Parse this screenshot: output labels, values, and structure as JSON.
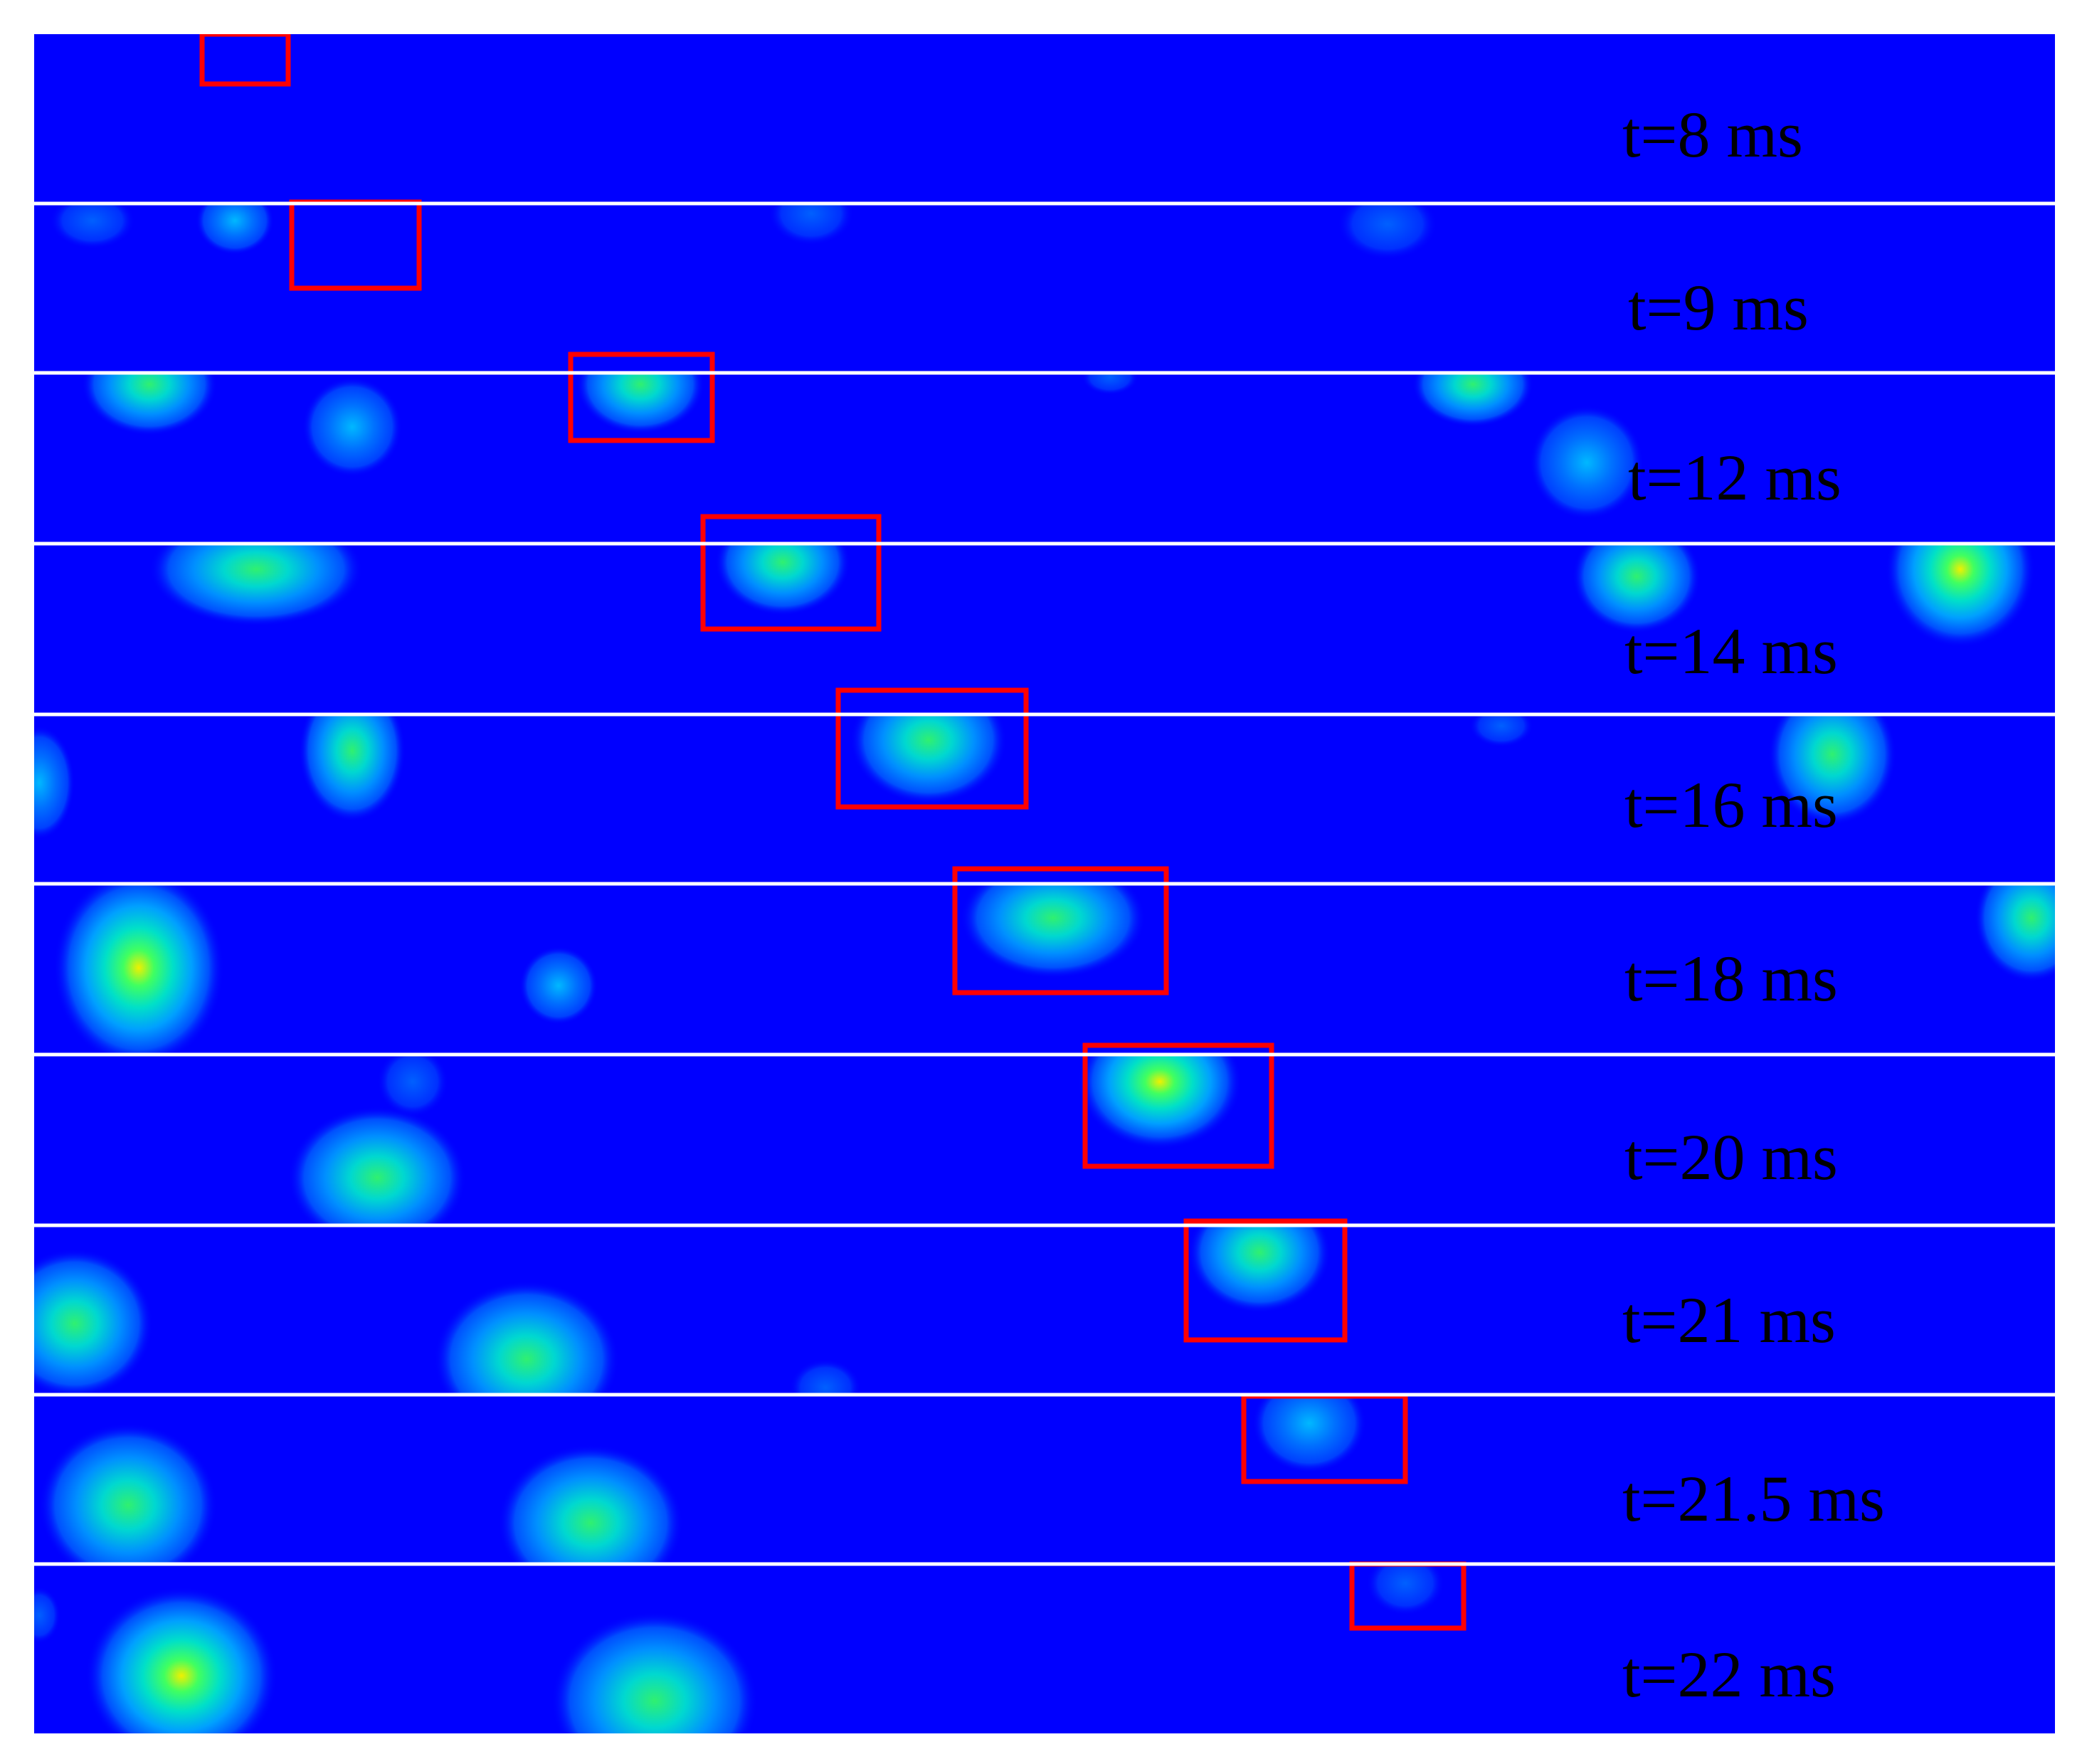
{
  "colors": {
    "background": "#0000ff",
    "separator": "#ffffff",
    "highlight_box": "#ff0000",
    "label_text": "#000000"
  },
  "frames": [
    {
      "time_label": "t=8 ms"
    },
    {
      "time_label": "t=9 ms"
    },
    {
      "time_label": "t=12 ms"
    },
    {
      "time_label": "t=14 ms"
    },
    {
      "time_label": "t=16 ms"
    },
    {
      "time_label": "t=18 ms"
    },
    {
      "time_label": "t=20 ms"
    },
    {
      "time_label": "t=21 ms"
    },
    {
      "time_label": "t=21.5 ms"
    },
    {
      "time_label": "t=22 ms"
    }
  ]
}
